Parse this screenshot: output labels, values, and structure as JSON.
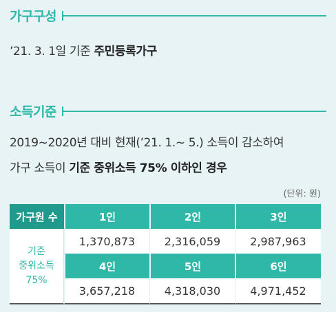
{
  "section1": {
    "title": "가구구성",
    "text": "’21. 3. 1일 기준",
    "text_bold": "주민등록가구"
  },
  "section2": {
    "title": "소득기준",
    "line1": "2019~2020년 대비 현재(’21. 1.~ 5.) 소득이 감소하여",
    "line2_pre": "가구 소득이",
    "line2_bold": "기준 중위소득 75% 이하인 경우"
  },
  "unit_note": "(단위: 원)",
  "table": {
    "corner_header": "가구원 수",
    "side_label_1": "기준",
    "side_label_2": "중위소득",
    "side_label_3": "75%",
    "headers_row1": [
      "1인",
      "2인",
      "3인"
    ],
    "values_row1": [
      "1,370,873",
      "2,316,059",
      "2,987,963"
    ],
    "headers_row2": [
      "4인",
      "5인",
      "6인"
    ],
    "values_row2": [
      "3,657,218",
      "4,318,030",
      "4,971,452"
    ]
  },
  "colors": {
    "accent": "#2fb7a8",
    "accent_dark": "#1f9a8c",
    "background": "#e7f3f5"
  }
}
